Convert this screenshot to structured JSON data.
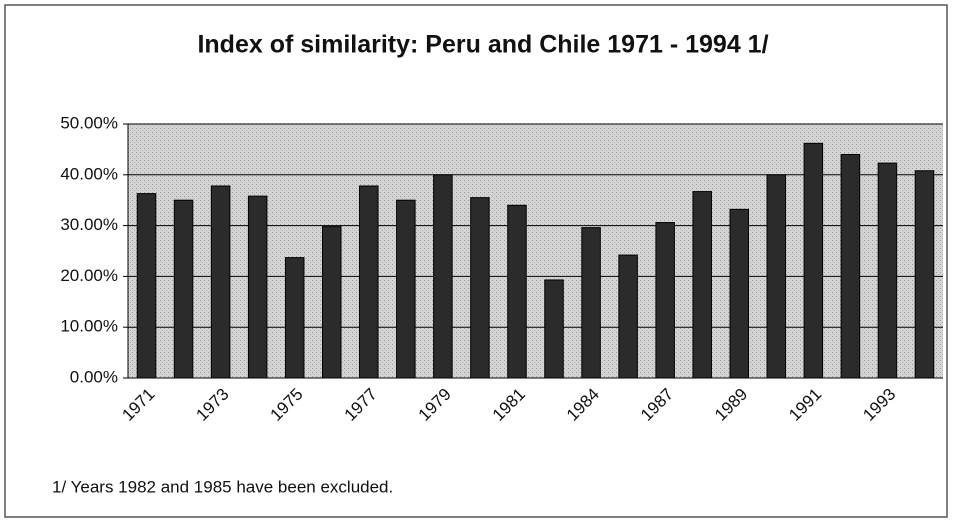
{
  "chart_data": {
    "type": "bar",
    "title": "Index of similarity: Peru and Chile 1971 - 1994   1/",
    "categories": [
      "1971",
      null,
      "1973",
      null,
      "1975",
      null,
      "1977",
      null,
      "1979",
      null,
      "1981",
      null,
      "1984",
      null,
      "1987",
      null,
      "1989",
      null,
      "1991",
      null,
      "1993",
      null
    ],
    "values": [
      36.3,
      35,
      37.8,
      35.8,
      23.7,
      29.8,
      37.8,
      35,
      40,
      35.5,
      34,
      19.3,
      29.6,
      24.2,
      30.6,
      36.7,
      33.2,
      40,
      46.2,
      44,
      42.3,
      40.8
    ],
    "color": "#2b2b2b",
    "ylim": [
      0,
      50
    ],
    "yticks": [
      {
        "value": 0,
        "label": "0.00%"
      },
      {
        "value": 10,
        "label": "10.00%"
      },
      {
        "value": 20,
        "label": "20.00%"
      },
      {
        "value": 30,
        "label": "30.00%"
      },
      {
        "value": 40,
        "label": "40.00%"
      },
      {
        "value": 50,
        "label": "50.00%"
      }
    ],
    "grid": true,
    "note": "1/ Years 1982 and 1985 have been excluded."
  }
}
